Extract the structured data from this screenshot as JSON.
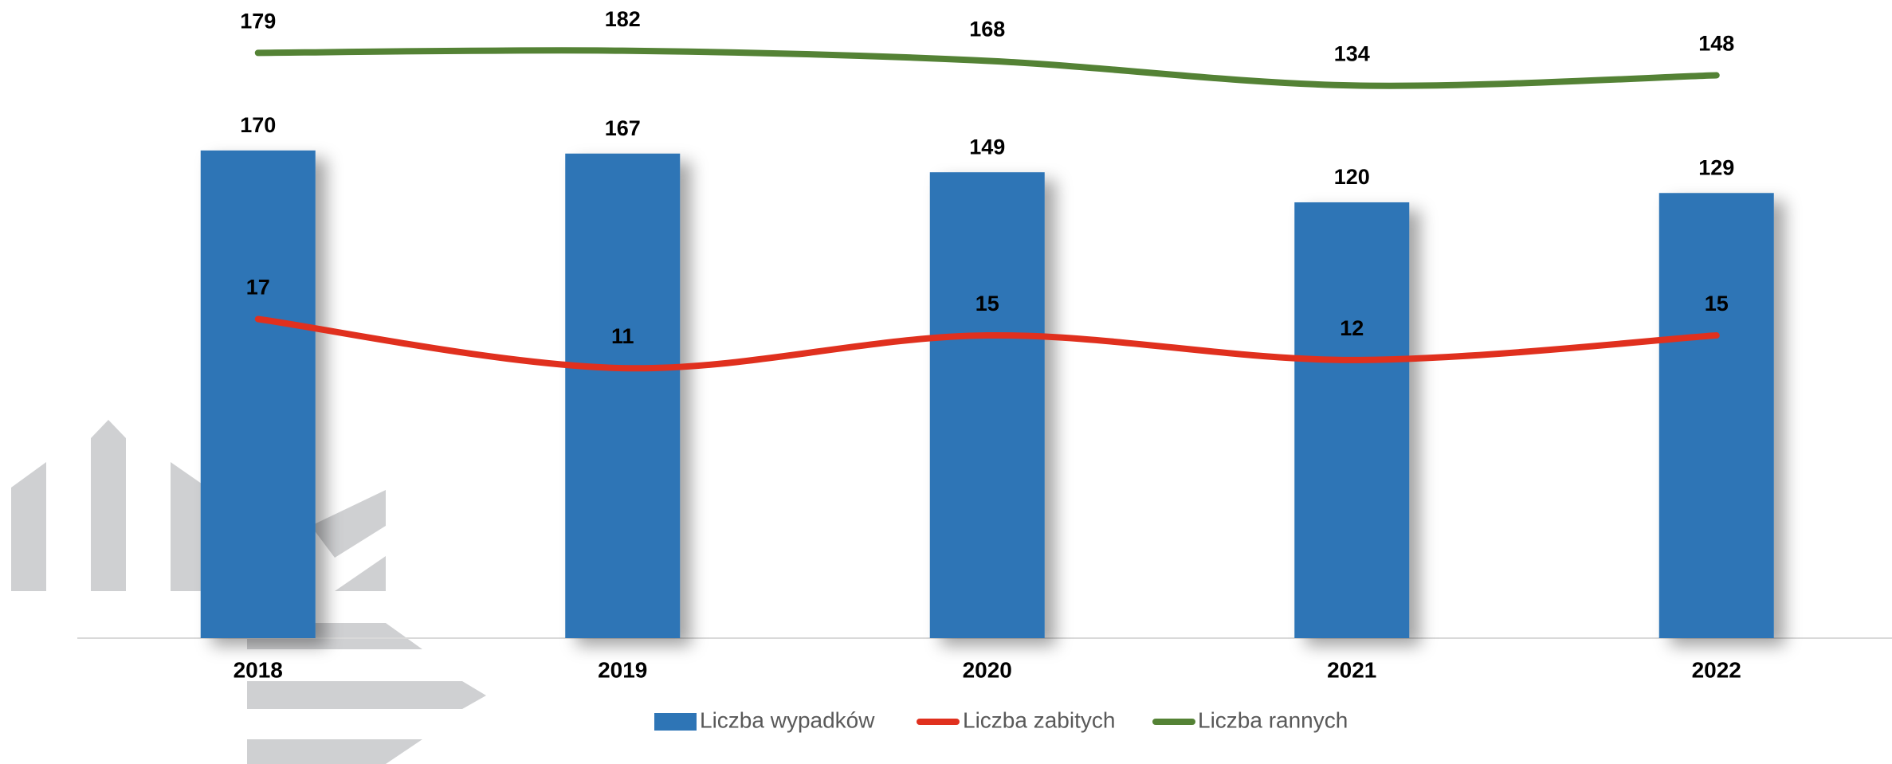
{
  "chart_data": {
    "type": "bar",
    "categories": [
      "2018",
      "2019",
      "2020",
      "2021",
      "2022"
    ],
    "series": [
      {
        "name": "Liczba wypadków",
        "type": "bar",
        "color": "#2e75b6",
        "values": [
          170,
          167,
          149,
          120,
          129
        ]
      },
      {
        "name": "Liczba zabitych",
        "type": "line",
        "axis": "y2",
        "color": "#e0301e",
        "values": [
          17,
          11,
          15,
          12,
          15
        ]
      },
      {
        "name": "Liczba rannych",
        "type": "line",
        "axis": "y3",
        "color": "#548235",
        "values": [
          179,
          182,
          168,
          134,
          148
        ]
      }
    ],
    "ylim": [
      -300,
      315
    ],
    "y2lim": [
      -22,
      56
    ],
    "y3lim": [
      -629,
      252
    ]
  }
}
